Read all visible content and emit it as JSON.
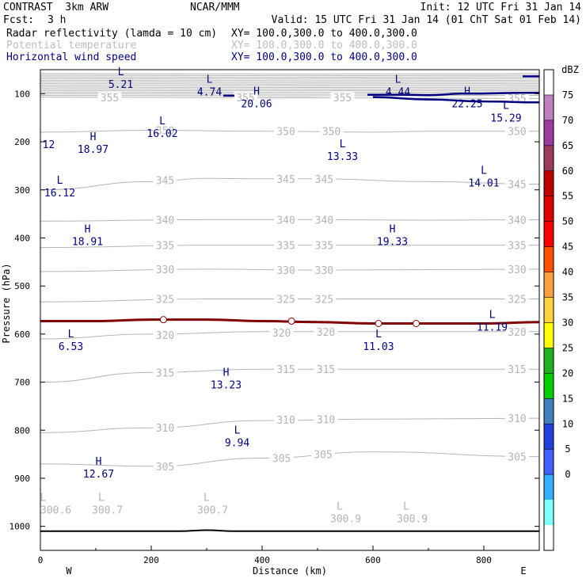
{
  "header": {
    "title": "CONTRAST  3km ARW",
    "center": "NCAR/MMM",
    "init": "Init: 12 UTC Fri 31 Jan 14",
    "fcst_label": "Fcst:",
    "fcst_value": "3 h",
    "valid": "Valid: 15 UTC Fri 31 Jan 14 (01 ChT Sat 01 Feb 14)",
    "field1": "Radar reflectivity (lamda = 10 cm)",
    "field1_xy": "XY= 100.0,300.0 to 400.0,300.0",
    "field2": "Potential temperature",
    "field2_xy": "XY= 100.0,300.0 to 400.0,300.0",
    "field3": "Horizontal wind speed",
    "field3_xy": "XY= 100.0,300.0 to 400.0,300.0"
  },
  "colors": {
    "theta": "#b4b4b4",
    "wind": "#000080",
    "freezing": "#800000",
    "terrain": "#000000"
  },
  "chart_data": {
    "type": "cross-section contour",
    "xlabel": "Distance (km)",
    "ylabel": "Pressure (hPa)",
    "xlim": [
      0,
      900
    ],
    "ylim": [
      1050,
      50
    ],
    "x_ticks": [
      "0",
      "200",
      "400",
      "600",
      "800"
    ],
    "x_tick_values": [
      0,
      200,
      400,
      600,
      800
    ],
    "y_ticks": [
      "100",
      "200",
      "300",
      "400",
      "500",
      "600",
      "700",
      "800",
      "900",
      "1000"
    ],
    "y_tick_values": [
      100,
      200,
      300,
      400,
      500,
      600,
      700,
      800,
      900,
      1000
    ],
    "west_label": "W",
    "east_label": "E",
    "colorbar": {
      "unit": "dBZ",
      "levels": [
        "75",
        "70",
        "65",
        "60",
        "55",
        "50",
        "45",
        "40",
        "35",
        "30",
        "25",
        "20",
        "15",
        "10",
        "5",
        "0"
      ],
      "colors": [
        "#ffffff",
        "#c080c0",
        "#9c3c9c",
        "#9c3c5c",
        "#c00000",
        "#e00000",
        "#ff0000",
        "#ff5000",
        "#ffa040",
        "#ffd040",
        "#ffff00",
        "#20b020",
        "#00d000",
        "#4080c0",
        "#2040e0",
        "#4060ff",
        "#30b0ff",
        "#80ffff",
        "#ffffff"
      ]
    },
    "theta_contours": [
      {
        "value": 355,
        "points": [
          [
            0,
            107
          ],
          [
            300,
            108
          ],
          [
            600,
            109
          ],
          [
            900,
            110
          ]
        ],
        "labels": [
          [
            125,
            108
          ],
          [
            370,
            108
          ],
          [
            545,
            108
          ],
          [
            860,
            109
          ]
        ]
      },
      {
        "value": 350,
        "points": [
          [
            0,
            180
          ],
          [
            200,
            176
          ],
          [
            400,
            178
          ],
          [
            600,
            180
          ],
          [
            700,
            178
          ],
          [
            900,
            178
          ]
        ],
        "labels": [
          [
            225,
            176
          ],
          [
            443,
            178
          ],
          [
            525,
            178
          ],
          [
            860,
            178
          ]
        ]
      },
      {
        "value": 345,
        "points": [
          [
            0,
            300
          ],
          [
            200,
            283
          ],
          [
            300,
            276
          ],
          [
            400,
            277
          ],
          [
            500,
            277
          ],
          [
            700,
            283
          ],
          [
            900,
            288
          ]
        ],
        "labels": [
          [
            225,
            280
          ],
          [
            443,
            277
          ],
          [
            512,
            277
          ],
          [
            860,
            288
          ]
        ]
      },
      {
        "value": 340,
        "points": [
          [
            0,
            365
          ],
          [
            300,
            362
          ],
          [
            500,
            362
          ],
          [
            700,
            363
          ],
          [
            900,
            362
          ]
        ],
        "labels": [
          [
            225,
            362
          ],
          [
            443,
            362
          ],
          [
            512,
            362
          ],
          [
            860,
            362
          ]
        ]
      },
      {
        "value": 335,
        "points": [
          [
            0,
            420
          ],
          [
            300,
            415
          ],
          [
            500,
            415
          ],
          [
            700,
            415
          ],
          [
            900,
            415
          ]
        ],
        "labels": [
          [
            225,
            415
          ],
          [
            443,
            415
          ],
          [
            512,
            415
          ],
          [
            860,
            415
          ]
        ]
      },
      {
        "value": 330,
        "points": [
          [
            0,
            470
          ],
          [
            300,
            465
          ],
          [
            500,
            467
          ],
          [
            700,
            466
          ],
          [
            900,
            465
          ]
        ],
        "labels": [
          [
            225,
            465
          ],
          [
            443,
            467
          ],
          [
            512,
            467
          ],
          [
            860,
            465
          ]
        ]
      },
      {
        "value": 325,
        "points": [
          [
            0,
            533
          ],
          [
            300,
            527
          ],
          [
            500,
            527
          ],
          [
            700,
            527
          ],
          [
            900,
            527
          ]
        ],
        "labels": [
          [
            225,
            527
          ],
          [
            443,
            527
          ],
          [
            512,
            527
          ],
          [
            860,
            527
          ]
        ]
      },
      {
        "value": 320,
        "points": [
          [
            0,
            610
          ],
          [
            200,
            600
          ],
          [
            400,
            595
          ],
          [
            600,
            595
          ],
          [
            900,
            595
          ]
        ],
        "labels": [
          [
            225,
            602
          ],
          [
            435,
            597
          ],
          [
            515,
            595
          ],
          [
            860,
            595
          ]
        ]
      },
      {
        "value": 315,
        "points": [
          [
            0,
            700
          ],
          [
            200,
            680
          ],
          [
            400,
            673
          ],
          [
            600,
            673
          ],
          [
            900,
            673
          ]
        ],
        "labels": [
          [
            225,
            680
          ],
          [
            443,
            673
          ],
          [
            515,
            673
          ],
          [
            860,
            673
          ]
        ]
      },
      {
        "value": 310,
        "points": [
          [
            0,
            805
          ],
          [
            200,
            795
          ],
          [
            400,
            780
          ],
          [
            600,
            777
          ],
          [
            900,
            775
          ]
        ],
        "labels": [
          [
            225,
            795
          ],
          [
            443,
            778
          ],
          [
            515,
            777
          ],
          [
            860,
            775
          ]
        ]
      },
      {
        "value": 305,
        "points": [
          [
            0,
            870
          ],
          [
            200,
            875
          ],
          [
            400,
            858
          ],
          [
            600,
            845
          ],
          [
            900,
            855
          ]
        ],
        "labels": [
          [
            225,
            875
          ],
          [
            435,
            858
          ],
          [
            510,
            850
          ],
          [
            860,
            855
          ]
        ]
      }
    ],
    "freezing_line": {
      "points": [
        [
          0,
          573
        ],
        [
          100,
          573
        ],
        [
          200,
          570
        ],
        [
          300,
          570
        ],
        [
          400,
          573
        ],
        [
          500,
          575
        ],
        [
          600,
          578
        ],
        [
          700,
          578
        ],
        [
          800,
          578
        ],
        [
          900,
          575
        ]
      ],
      "markers": [
        [
          222,
          570
        ],
        [
          453,
          573
        ],
        [
          610,
          578
        ],
        [
          678,
          578
        ]
      ]
    },
    "wind_contours": [
      {
        "points": [
          [
            330,
            104
          ],
          [
            350,
            104
          ]
        ]
      },
      {
        "points": [
          [
            590,
            102
          ],
          [
            650,
            102
          ],
          [
            700,
            103
          ],
          [
            760,
            100
          ],
          [
            900,
            98
          ]
        ]
      },
      {
        "points": [
          [
            600,
            107
          ],
          [
            700,
            112
          ],
          [
            800,
            116
          ],
          [
            900,
            118
          ]
        ]
      },
      {
        "points": [
          [
            870,
            64
          ],
          [
            900,
            64
          ]
        ]
      }
    ],
    "terrain": {
      "points": [
        [
          0,
          1010
        ],
        [
          250,
          1010
        ],
        [
          300,
          1008
        ],
        [
          350,
          1010
        ],
        [
          900,
          1010
        ]
      ]
    },
    "theta_extrema": [
      {
        "type": "L",
        "value": "300.6",
        "x": 5,
        "p": 960
      },
      {
        "type": "L",
        "value": "300.7",
        "x": 110,
        "p": 960
      },
      {
        "type": "L",
        "value": "300.7",
        "x": 300,
        "p": 960
      },
      {
        "type": "L",
        "value": "300.9",
        "x": 540,
        "p": 978
      },
      {
        "type": "L",
        "value": "300.9",
        "x": 660,
        "p": 978
      }
    ],
    "wind_extrema": [
      {
        "type": "L",
        "value": "5.21",
        "x": 145,
        "p": 75
      },
      {
        "type": "L",
        "value": "4.74",
        "x": 305,
        "p": 90
      },
      {
        "type": "H",
        "value": "20.06",
        "x": 390,
        "p": 115
      },
      {
        "type": "L",
        "value": "4.44",
        "x": 645,
        "p": 90
      },
      {
        "type": "H",
        "value": "22.25",
        "x": 770,
        "p": 115
      },
      {
        "type": "L",
        "value": "15.29",
        "x": 840,
        "p": 145
      },
      {
        "type": "L",
        "value": "16.02",
        "x": 220,
        "p": 177
      },
      {
        "type": "",
        "value": "12",
        "x": 15,
        "p": 200
      },
      {
        "type": "H",
        "value": "18.97",
        "x": 95,
        "p": 210
      },
      {
        "type": "L",
        "value": "13.33",
        "x": 545,
        "p": 225
      },
      {
        "type": "L",
        "value": "14.01",
        "x": 800,
        "p": 280
      },
      {
        "type": "L",
        "value": "16.12",
        "x": 35,
        "p": 300
      },
      {
        "type": "H",
        "value": "18.91",
        "x": 85,
        "p": 402
      },
      {
        "type": "H",
        "value": "19.33",
        "x": 635,
        "p": 402
      },
      {
        "type": "L",
        "value": "11.19",
        "x": 815,
        "p": 580
      },
      {
        "type": "L",
        "value": "6.53",
        "x": 55,
        "p": 620
      },
      {
        "type": "L",
        "value": "11.03",
        "x": 610,
        "p": 620
      },
      {
        "type": "H",
        "value": "13.23",
        "x": 335,
        "p": 700
      },
      {
        "type": "L",
        "value": "9.94",
        "x": 355,
        "p": 820
      },
      {
        "type": "H",
        "value": "12.67",
        "x": 105,
        "p": 885
      }
    ]
  }
}
